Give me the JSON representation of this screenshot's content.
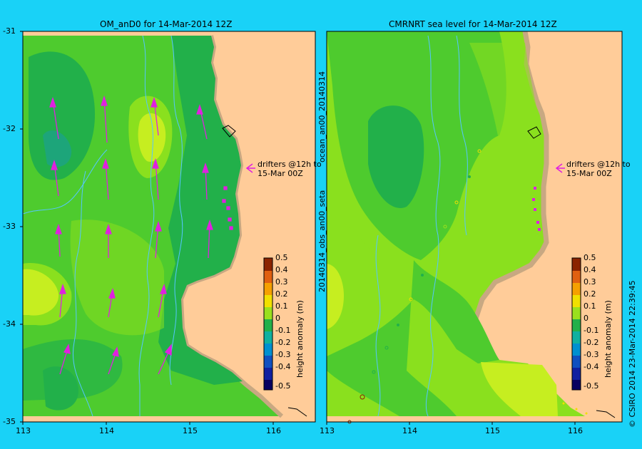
{
  "left_panel": {
    "title": "OM_anD0 for 14-Mar-2014 12Z",
    "y_ticks": [
      "-31",
      "-32",
      "-33",
      "-34",
      "-35"
    ],
    "x_ticks": [
      "113",
      "114",
      "115",
      "116"
    ],
    "annotation_line1": "drifters @12h to",
    "annotation_line2": "15-Mar 00Z"
  },
  "right_panel": {
    "title": "CMRNRT sea level  for 14-Mar-2014 12Z",
    "side_label_top": "ocean_an00_20140314",
    "side_label_bottom": "20140314_obs_an00_seta",
    "x_ticks": [
      "113",
      "114",
      "115",
      "116"
    ],
    "annotation_line1": "drifters @12h to",
    "annotation_line2": "15-Mar 00Z"
  },
  "colorbar": {
    "label": "height anomaly (m)",
    "ticks": [
      "0.5",
      "0.4",
      "0.3",
      "0.2",
      "0.1",
      "0",
      "-0.1",
      "-0.2",
      "-0.3",
      "-0.4",
      "-0.5"
    ]
  },
  "credit": "© CSIRO 2014   23-Mar-2014 22:39:45",
  "colors": {
    "background": "#19d2f7",
    "land": "#ffcc99",
    "coast": "#c8a882",
    "drifter_arrow": "#e020e0",
    "bathymetry": "#55c6ff",
    "level_neg01": "#22b04a",
    "level_0": "#4ecb2e",
    "level_pos01": "#8ae01e",
    "level_pos02": "#c6ee20"
  }
}
